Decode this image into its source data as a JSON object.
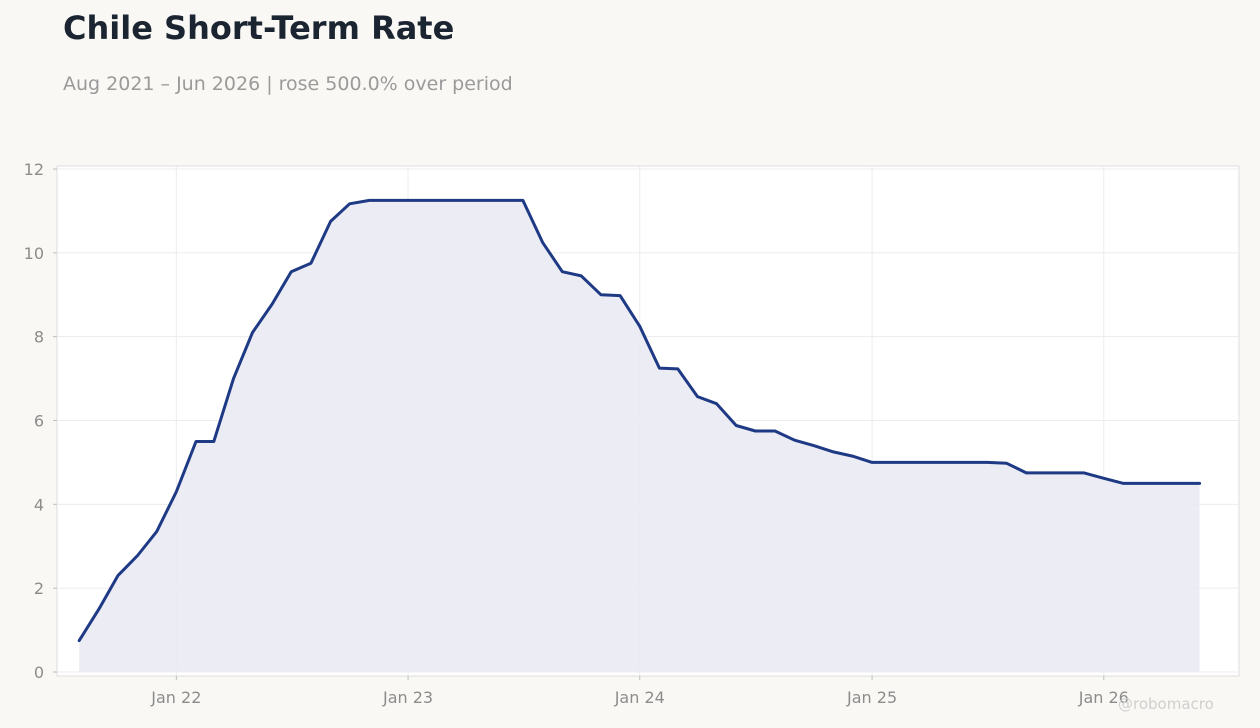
{
  "title": "Chile Short-Term Rate",
  "subtitle": "Aug 2021 – Jun 2026 | rose 500.0% over period",
  "watermark": "@robomacro",
  "colors": {
    "line": "#1f3a85",
    "area": "#e9eaf3",
    "grid": "#ececec",
    "plot_background": "#ffffff",
    "page_background": "#f9f8f5"
  },
  "chart_data": {
    "type": "area",
    "x_type": "date",
    "ylim": [
      0,
      12
    ],
    "yticks": [
      0,
      2,
      4,
      6,
      8,
      10,
      12
    ],
    "xlim": [
      "2021-06-27",
      "2026-08-02"
    ],
    "xticks": [
      {
        "date": "2022-01-01",
        "label": "Jan 22"
      },
      {
        "date": "2023-01-01",
        "label": "Jan 23"
      },
      {
        "date": "2024-01-01",
        "label": "Jan 24"
      },
      {
        "date": "2025-01-01",
        "label": "Jan 25"
      },
      {
        "date": "2026-01-01",
        "label": "Jan 26"
      }
    ],
    "grid": true,
    "series": [
      {
        "x": [
          "2021-08-01",
          "2021-09-01",
          "2021-10-01",
          "2021-11-01",
          "2021-12-01",
          "2022-01-01",
          "2022-02-01",
          "2022-03-01",
          "2022-04-01",
          "2022-05-01",
          "2022-06-01",
          "2022-07-01",
          "2022-08-01",
          "2022-09-01",
          "2022-10-01",
          "2022-11-01",
          "2022-12-01",
          "2023-01-01",
          "2023-02-01",
          "2023-03-01",
          "2023-04-01",
          "2023-05-01",
          "2023-06-01",
          "2023-07-01",
          "2023-08-01",
          "2023-09-01",
          "2023-10-01",
          "2023-11-01",
          "2023-12-01",
          "2024-01-01",
          "2024-02-01",
          "2024-03-01",
          "2024-04-01",
          "2024-05-01",
          "2024-06-01",
          "2024-07-01",
          "2024-08-01",
          "2024-09-01",
          "2024-10-01",
          "2024-11-01",
          "2024-12-01",
          "2025-01-01",
          "2025-02-01",
          "2025-03-01",
          "2025-04-01",
          "2025-05-01",
          "2025-06-01",
          "2025-07-01",
          "2025-08-01",
          "2025-09-01",
          "2025-10-01",
          "2025-11-01",
          "2025-12-01",
          "2026-01-01",
          "2026-02-01",
          "2026-03-01",
          "2026-04-01",
          "2026-05-01",
          "2026-06-01"
        ],
        "values": [
          0.75,
          1.5,
          2.3,
          2.78,
          3.35,
          4.3,
          5.5,
          5.5,
          7.0,
          8.1,
          8.78,
          9.55,
          9.75,
          10.75,
          11.17,
          11.25,
          11.25,
          11.25,
          11.25,
          11.25,
          11.25,
          11.25,
          11.25,
          11.25,
          10.25,
          9.55,
          9.45,
          9.0,
          8.98,
          8.25,
          7.25,
          7.23,
          6.57,
          6.4,
          5.88,
          5.75,
          5.75,
          5.53,
          5.4,
          5.25,
          5.15,
          5.0,
          5.0,
          5.0,
          5.0,
          5.0,
          5.0,
          5.0,
          4.98,
          4.75,
          4.75,
          4.75,
          4.75,
          4.62,
          4.5,
          4.5,
          4.5,
          4.5,
          4.5
        ]
      }
    ]
  }
}
